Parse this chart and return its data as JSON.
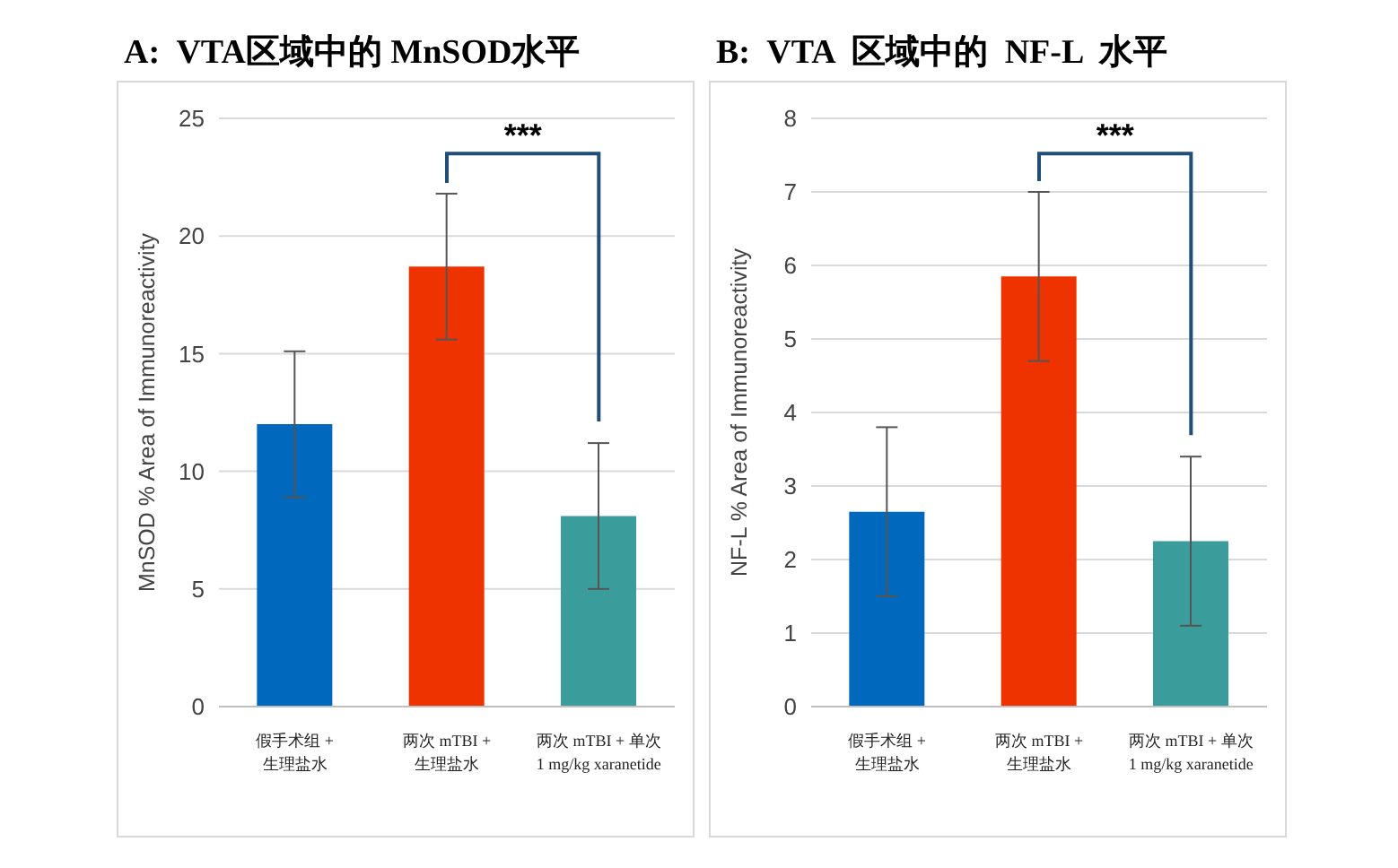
{
  "chart_data": [
    {
      "type": "bar",
      "title": "A:  VTA区域中的 MnSOD水平",
      "ylabel": "MnSOD % Area of Immunoreactivity",
      "categories": [
        "假手术组 +\n生理盐水",
        "两次 mTBI +\n生理盐水",
        "两次  mTBI + 单次\n1 mg/kg xaranetide"
      ],
      "values": [
        12,
        18.7,
        8.1
      ],
      "errors": [
        3.1,
        3.1,
        3.1
      ],
      "colors": [
        "#0068bd",
        "#ee3300",
        "#3a9d9b"
      ],
      "ylim": [
        0,
        25
      ],
      "yticks": [
        0,
        5,
        10,
        15,
        20,
        25
      ],
      "grid": "y",
      "annotations": [
        "***"
      ]
    },
    {
      "type": "bar",
      "title": "B:  VTA  区域中的  NF-L  水平",
      "ylabel": "NF-L % Area of Immunoreactivity",
      "categories": [
        "假手术组 +\n生理盐水",
        "两次 mTBI +\n生理盐水",
        "两次  mTBI + 单次\n1 mg/kg xaranetide"
      ],
      "values": [
        2.65,
        5.85,
        2.25
      ],
      "errors": [
        1.15,
        1.15,
        1.15
      ],
      "colors": [
        "#0068bd",
        "#ee3300",
        "#3a9d9b"
      ],
      "ylim": [
        0,
        8
      ],
      "yticks": [
        0,
        1,
        2,
        3,
        4,
        5,
        6,
        7,
        8
      ],
      "grid": "y",
      "annotations": [
        "***"
      ]
    }
  ]
}
